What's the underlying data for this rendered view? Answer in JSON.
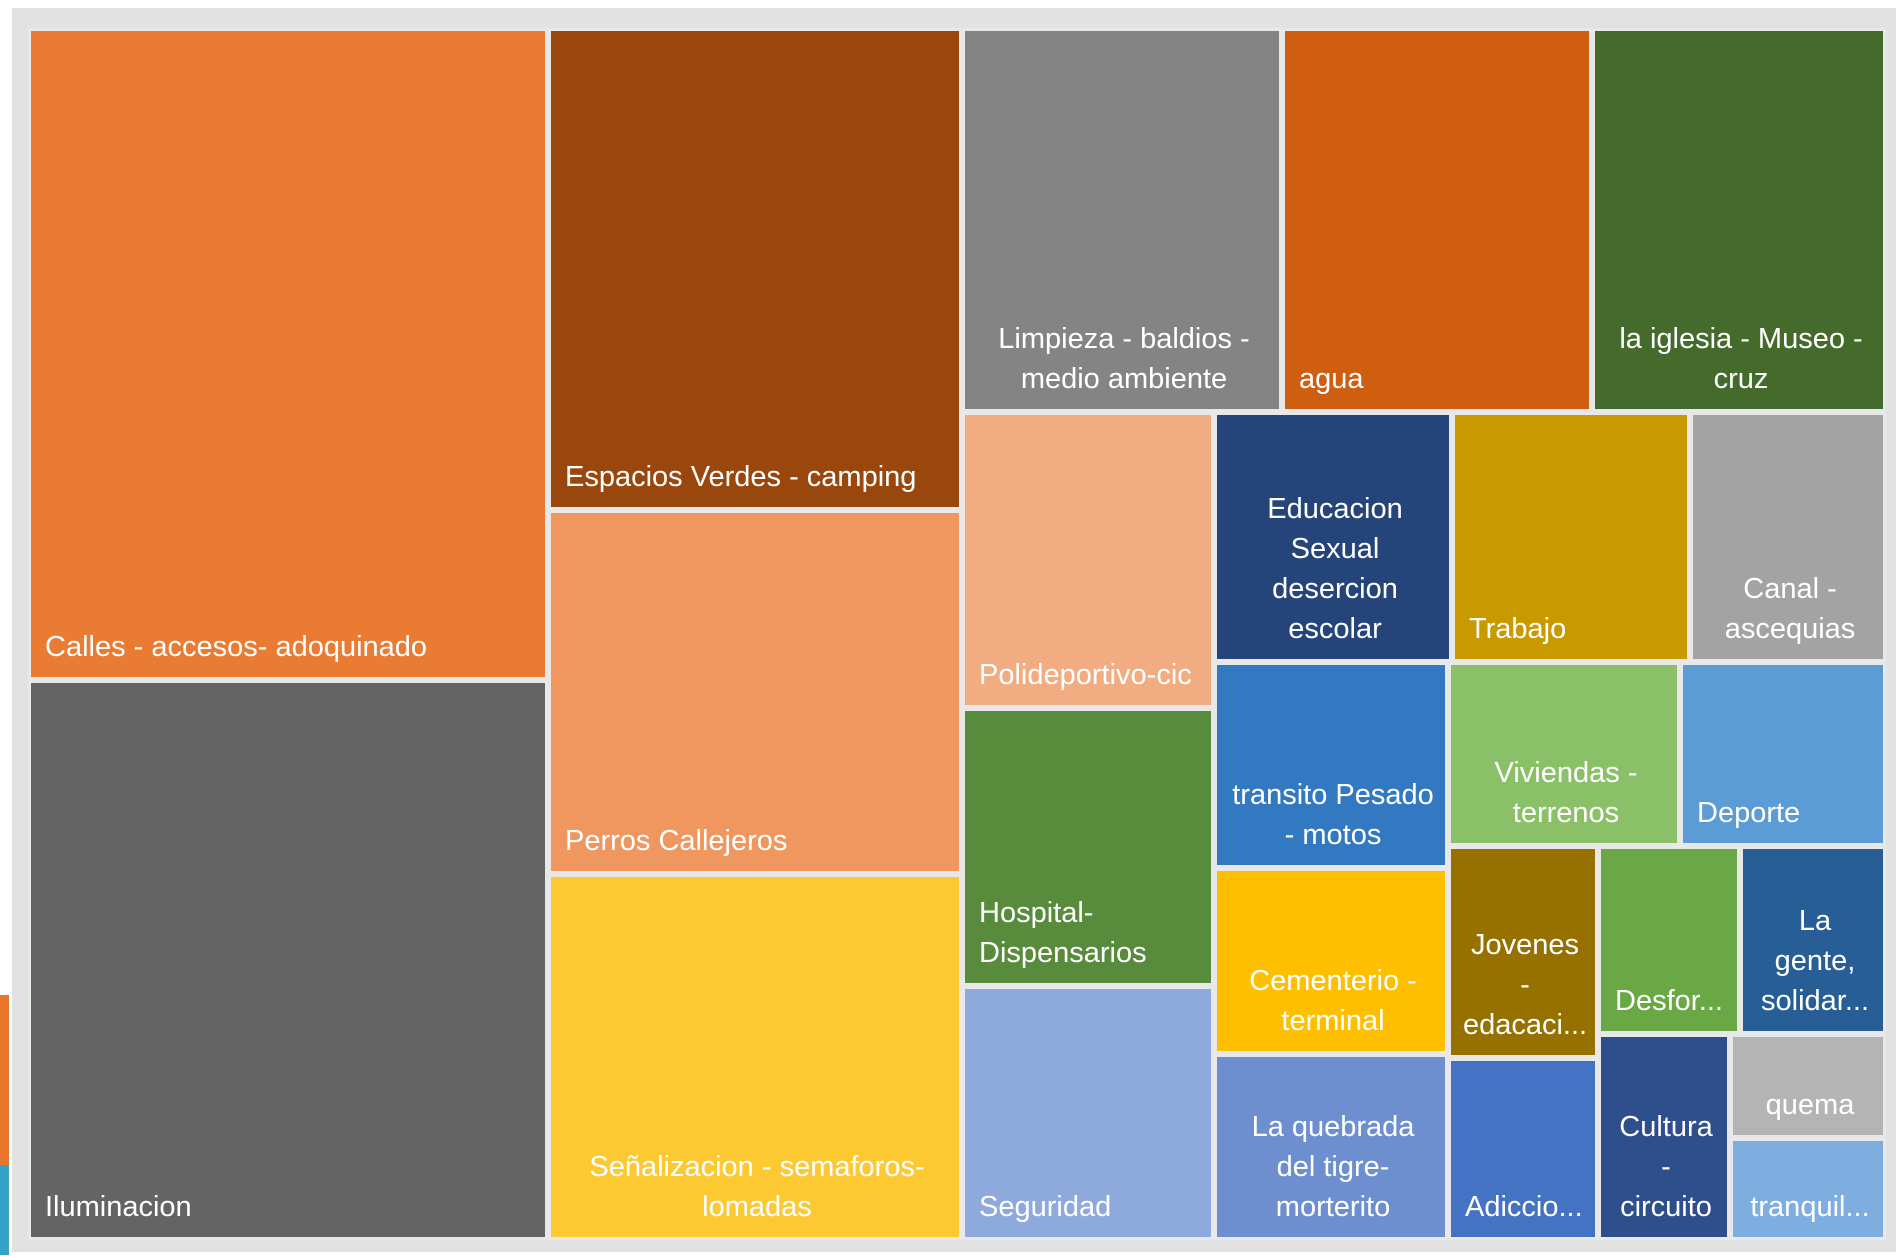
{
  "chart_data": {
    "type": "treemap",
    "title": "",
    "items": [
      {
        "label": "Calles  - accesos- adoquinado",
        "value": 24.8,
        "color": "#ea7b32"
      },
      {
        "label": "Iluminacion",
        "value": 21.2,
        "color": "#646464"
      },
      {
        "label": "Espacios Verdes - camping",
        "value": 13.8,
        "color": "#9a470e"
      },
      {
        "label": "Perros Callejeros",
        "value": 10.6,
        "color": "#ef975e"
      },
      {
        "label": "Señalizacion - semaforos-\nlomadas",
        "value": 10.6,
        "color": "#fdc933"
      },
      {
        "label": "Limpieza - baldios -\nmedio ambiente",
        "value": 8.5,
        "color": "#848484"
      },
      {
        "label": "agua",
        "value": 8.2,
        "color": "#d05e10"
      },
      {
        "label": "la iglesia - Museo -\ncruz",
        "value": 7.7,
        "color": "#456b2c"
      },
      {
        "label": "Polideportivo-cic",
        "value": 5.1,
        "color": "#f1ac82"
      },
      {
        "label": "Hospital-\nDispensarios",
        "value": 4.7,
        "color": "#588b3c"
      },
      {
        "label": "Seguridad",
        "value": 5.0,
        "color": "#8ea9dc"
      },
      {
        "label": "Educacion\nSexual\ndesercion\nescolar",
        "value": 4.1,
        "color": "#25457a"
      },
      {
        "label": "Trabajo",
        "value": 4.1,
        "color": "#c99900"
      },
      {
        "label": "Canal -\nascequias",
        "value": 3.2,
        "color": "#a3a3a3"
      },
      {
        "label": "transito Pesado\n- motos",
        "value": 3.4,
        "color": "#3379c1"
      },
      {
        "label": "Viviendas -\nterrenos",
        "value": 3.0,
        "color": "#8ac067"
      },
      {
        "label": "Deporte",
        "value": 2.8,
        "color": "#5b9bd6"
      },
      {
        "label": "Cementerio -\nterminal",
        "value": 3.1,
        "color": "#fdbf00"
      },
      {
        "label": "La quebrada\ndel tigre-\nmorterito",
        "value": 3.1,
        "color": "#6d8fcf"
      },
      {
        "label": "Jovenes -\nedacaci...",
        "value": 2.0,
        "color": "#977100"
      },
      {
        "label": "Desfor...",
        "value": 1.7,
        "color": "#6aa845"
      },
      {
        "label": "La\ngente,\nsolidar...",
        "value": 1.6,
        "color": "#275e95"
      },
      {
        "label": "Adiccio...",
        "value": 1.6,
        "color": "#4573c4"
      },
      {
        "label": "Cultura\n-\ncircuito",
        "value": 1.7,
        "color": "#2e4f8b"
      },
      {
        "label": "quema",
        "value": 0.8,
        "color": "#b4b4b4"
      },
      {
        "label": "tranquil...",
        "value": 0.8,
        "color": "#7eaee0"
      }
    ]
  }
}
